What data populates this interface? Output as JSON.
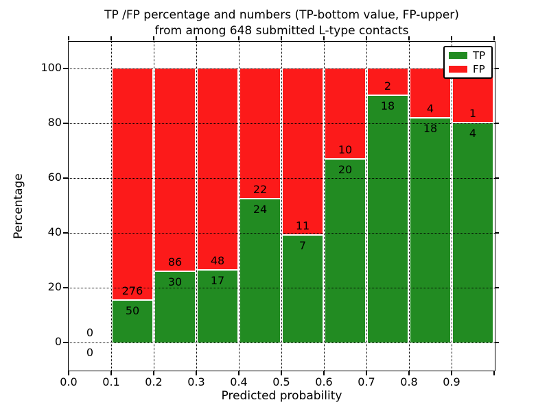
{
  "title": {
    "line1": "TP /FP percentage and numbers (TP-bottom value, FP-upper)",
    "line2": "from among 648 submitted L-type contacts"
  },
  "axes": {
    "xlabel": "Predicted probability",
    "ylabel": "Percentage",
    "xtick_labels": [
      "0.0",
      "0.1",
      "0.2",
      "0.3",
      "0.4",
      "0.5",
      "0.6",
      "0.7",
      "0.8",
      "0.9"
    ],
    "ytick_labels": [
      "0",
      "20",
      "40",
      "60",
      "80",
      "100"
    ],
    "ytick_values": [
      0,
      20,
      40,
      60,
      80,
      100
    ]
  },
  "legend": {
    "items": [
      {
        "label": "TP",
        "color": "#228B22"
      },
      {
        "label": "FP",
        "color": "#FC1A1A"
      }
    ]
  },
  "colors": {
    "tp_green": "#228B22",
    "fp_red": "#FC1A1A",
    "edge_white": "#ffffff",
    "frame_black": "#000000"
  },
  "chart_data": {
    "type": "bar",
    "stacked": true,
    "normalized_to_percent": true,
    "title": "TP /FP percentage and numbers (TP-bottom value, FP-upper) from among 648 submitted L-type contacts",
    "xlabel": "Predicted probability",
    "ylabel": "Percentage",
    "xlim": [
      0.0,
      1.0
    ],
    "ylim": [
      -10,
      110
    ],
    "grid": "dotted both axes at ticks",
    "legend_position": "upper right",
    "bin_width": 0.1,
    "total_contacts": 648,
    "categories": [
      "0.0",
      "0.1",
      "0.2",
      "0.3",
      "0.4",
      "0.5",
      "0.6",
      "0.7",
      "0.8",
      "0.9"
    ],
    "series": [
      {
        "name": "TP",
        "color": "#228B22",
        "values": [
          0,
          50,
          30,
          17,
          24,
          7,
          20,
          18,
          18,
          4
        ]
      },
      {
        "name": "FP",
        "color": "#FC1A1A",
        "values": [
          0,
          276,
          86,
          48,
          22,
          11,
          10,
          2,
          4,
          1
        ]
      }
    ],
    "tp_percent_by_bin": [
      null,
      15.34,
      25.86,
      26.15,
      52.17,
      38.89,
      66.67,
      90.0,
      81.82,
      80.0
    ]
  }
}
